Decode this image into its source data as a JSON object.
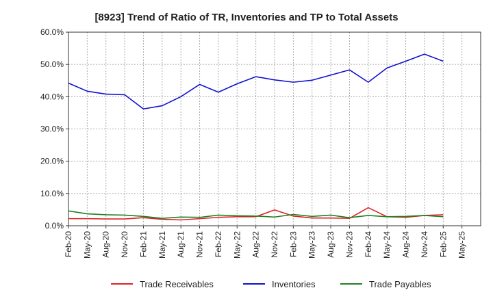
{
  "chart_data": {
    "type": "line",
    "title": "[8923]  Trend of Ratio of TR, Inventories and TP to Total Assets",
    "xlabel": "",
    "ylabel": "",
    "ylim": [
      0,
      60
    ],
    "y_ticks": [
      "0.0%",
      "10.0%",
      "20.0%",
      "30.0%",
      "40.0%",
      "50.0%",
      "60.0%"
    ],
    "y_tick_values": [
      0,
      10,
      20,
      30,
      40,
      50,
      60
    ],
    "x_tick_labels": [
      "Feb-20",
      "May-20",
      "Aug-20",
      "Nov-20",
      "Feb-21",
      "May-21",
      "Aug-21",
      "Nov-21",
      "Feb-22",
      "May-22",
      "Aug-22",
      "Nov-22",
      "Feb-23",
      "May-23",
      "Aug-23",
      "Nov-23",
      "Feb-24",
      "May-24",
      "Aug-24",
      "Nov-24",
      "Feb-25",
      "May-25"
    ],
    "x": [
      "Feb-20",
      "May-20",
      "Aug-20",
      "Nov-20",
      "Feb-21",
      "May-21",
      "Aug-21",
      "Nov-21",
      "Feb-22",
      "May-22",
      "Aug-22",
      "Nov-22",
      "Feb-23",
      "May-23",
      "Aug-23",
      "Nov-23",
      "Feb-24",
      "May-24",
      "Aug-24",
      "Nov-24",
      "Feb-25"
    ],
    "grid": true,
    "legend_position": "bottom",
    "series": [
      {
        "name": "Trade Receivables",
        "color": "#e02020",
        "values": [
          2.2,
          2.2,
          2.1,
          2.1,
          2.5,
          2.0,
          1.8,
          2.2,
          2.6,
          2.8,
          2.8,
          4.9,
          3.0,
          2.4,
          2.4,
          2.3,
          5.6,
          2.8,
          2.6,
          3.2,
          3.4
        ]
      },
      {
        "name": "Inventories",
        "color": "#1010d0",
        "values": [
          44.2,
          41.7,
          40.8,
          40.6,
          36.2,
          37.2,
          40.0,
          43.8,
          41.4,
          44.0,
          46.2,
          45.2,
          44.5,
          45.1,
          46.7,
          48.3,
          44.5,
          48.9,
          51.0,
          53.2,
          51.0
        ]
      },
      {
        "name": "Trade Payables",
        "color": "#208020",
        "values": [
          4.6,
          3.7,
          3.4,
          3.3,
          2.9,
          2.3,
          2.7,
          2.6,
          3.3,
          3.1,
          3.0,
          2.7,
          3.5,
          2.9,
          3.3,
          2.5,
          3.2,
          2.8,
          2.9,
          3.2,
          2.8
        ]
      }
    ]
  }
}
